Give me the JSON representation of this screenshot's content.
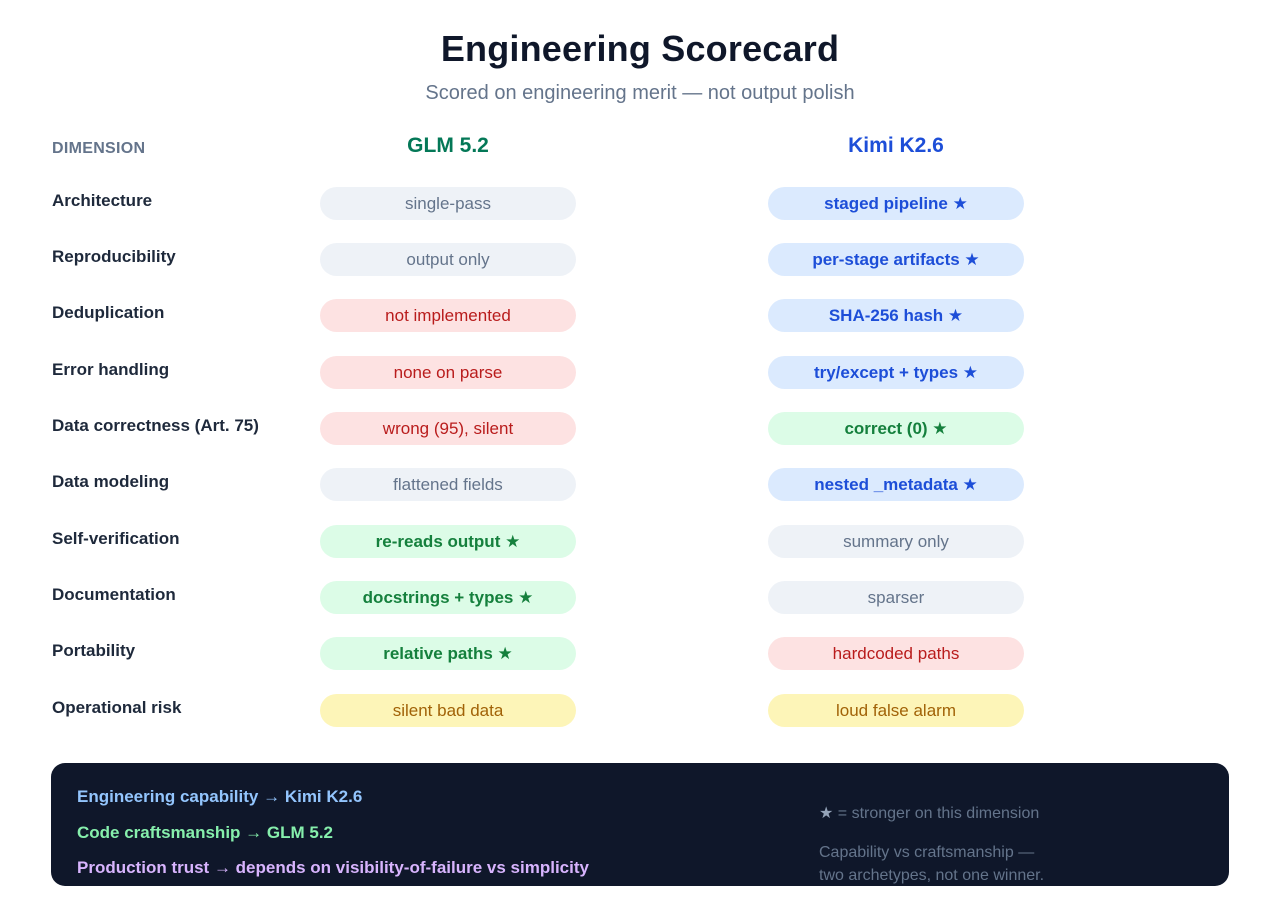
{
  "header": {
    "title": "Engineering Scorecard",
    "subtitle": "Scored on engineering merit — not output polish"
  },
  "columns": {
    "dimension": "DIMENSION",
    "model_a": "GLM 5.2",
    "model_b": "Kimi K2.6"
  },
  "colors": {
    "model_a": "#047857",
    "model_b": "#1d4ed8",
    "neutral": "#eef2f7",
    "bad": "#fde2e2",
    "warn": "#fdf5b8",
    "blue": "#dbeafe",
    "green": "#dcfce7",
    "footer_bg": "#0f172a"
  },
  "rows": [
    {
      "dimension": "Architecture",
      "a": {
        "text": "single-pass",
        "tone": "neutral"
      },
      "b": {
        "text": "staged pipeline ★",
        "tone": "blue"
      }
    },
    {
      "dimension": "Reproducibility",
      "a": {
        "text": "output only",
        "tone": "neutral"
      },
      "b": {
        "text": "per-stage artifacts ★",
        "tone": "blue"
      }
    },
    {
      "dimension": "Deduplication",
      "a": {
        "text": "not implemented",
        "tone": "bad"
      },
      "b": {
        "text": "SHA-256 hash ★",
        "tone": "blue"
      }
    },
    {
      "dimension": "Error handling",
      "a": {
        "text": "none on parse",
        "tone": "bad"
      },
      "b": {
        "text": "try/except + types ★",
        "tone": "blue"
      }
    },
    {
      "dimension": "Data correctness (Art. 75)",
      "a": {
        "text": "wrong (95), silent",
        "tone": "bad"
      },
      "b": {
        "text": "correct (0) ★",
        "tone": "green"
      }
    },
    {
      "dimension": "Data modeling",
      "a": {
        "text": "flattened fields",
        "tone": "neutral"
      },
      "b": {
        "text": "nested _metadata ★",
        "tone": "blue"
      }
    },
    {
      "dimension": "Self-verification",
      "a": {
        "text": "re-reads output ★",
        "tone": "green"
      },
      "b": {
        "text": "summary only",
        "tone": "neutral"
      }
    },
    {
      "dimension": "Documentation",
      "a": {
        "text": "docstrings + types ★",
        "tone": "green"
      },
      "b": {
        "text": "sparser",
        "tone": "neutral"
      }
    },
    {
      "dimension": "Portability",
      "a": {
        "text": "relative paths ★",
        "tone": "green"
      },
      "b": {
        "text": "hardcoded paths",
        "tone": "bad"
      }
    },
    {
      "dimension": "Operational risk",
      "a": {
        "text": "silent bad data",
        "tone": "warn"
      },
      "b": {
        "text": "loud false alarm",
        "tone": "warn"
      }
    }
  ],
  "footer": {
    "verdicts": [
      "Engineering capability → Kimi K2.6",
      "Code craftsmanship → GLM 5.2",
      "Production trust → depends on visibility-of-failure vs simplicity"
    ],
    "legend_star": "★",
    "legend_text": " = stronger on this dimension",
    "note_line1": "Capability vs craftsmanship —",
    "note_line2": "two archetypes, not one winner."
  }
}
